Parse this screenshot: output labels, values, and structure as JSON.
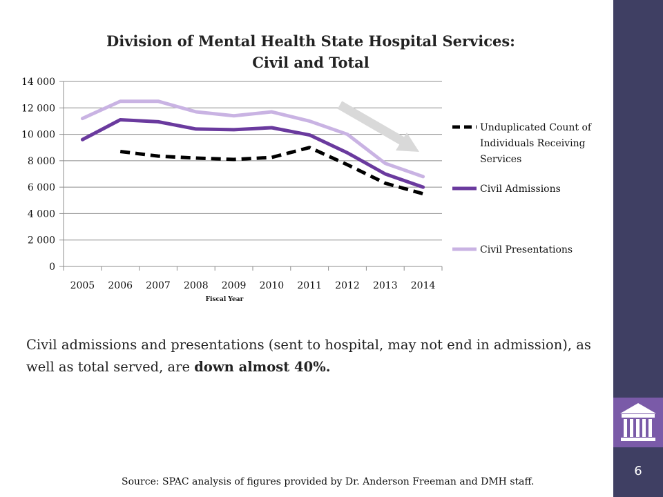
{
  "slide": {
    "page_number": "6",
    "summary_prefix": "Civil admissions and presentations (sent to hospital, may not end in admission), as well as total served, are ",
    "summary_emphasis": "down almost 40%.",
    "source": "Source: SPAC analysis of figures provided by Dr. Anderson Freeman and DMH staff.",
    "icon": "building-columns-icon",
    "colors": {
      "side_panel": "#3f3f63",
      "logo_box": "#7a5aa8",
      "trend_arrow": "#d9d9d9"
    }
  },
  "chart_data": {
    "type": "line",
    "title_line1": "Division of Mental Health State Hospital Services:",
    "title_line2": "Civil and Total",
    "xlabel": "Fiscal Year",
    "ylabel": "",
    "categories": [
      "2005",
      "2006",
      "2007",
      "2008",
      "2009",
      "2010",
      "2011",
      "2012",
      "2013",
      "2014"
    ],
    "ylim": [
      0,
      14000
    ],
    "y_ticks": [
      0,
      2000,
      4000,
      6000,
      8000,
      10000,
      12000,
      14000
    ],
    "y_tick_labels": [
      "0",
      "2 000",
      "4 000",
      "6 000",
      "8 000",
      "10 000",
      "12 000",
      "14 000"
    ],
    "grid": true,
    "legend_position": "right",
    "series": [
      {
        "name": "Unduplicated Count of Individuals Receiving Services",
        "legend_lines": [
          "Unduplicated Count of",
          "Individuals Receiving",
          "Services"
        ],
        "color": "#000000",
        "dashed": true,
        "values": [
          null,
          8700,
          8350,
          8200,
          8100,
          8250,
          9000,
          7700,
          6300,
          5500
        ]
      },
      {
        "name": "Civil Admissions",
        "legend_lines": [
          "Civil Admissions"
        ],
        "color": "#6a3a9e",
        "dashed": false,
        "values": [
          9600,
          11100,
          10950,
          10400,
          10350,
          10500,
          9950,
          8600,
          7000,
          6000
        ]
      },
      {
        "name": "Civil Presentations",
        "legend_lines": [
          "Civil Presentations"
        ],
        "color": "#c9b3e3",
        "dashed": false,
        "values": [
          11200,
          12500,
          12500,
          11700,
          11400,
          11700,
          11000,
          10000,
          7800,
          6800
        ]
      }
    ],
    "annotation": "trend-down-arrow"
  }
}
